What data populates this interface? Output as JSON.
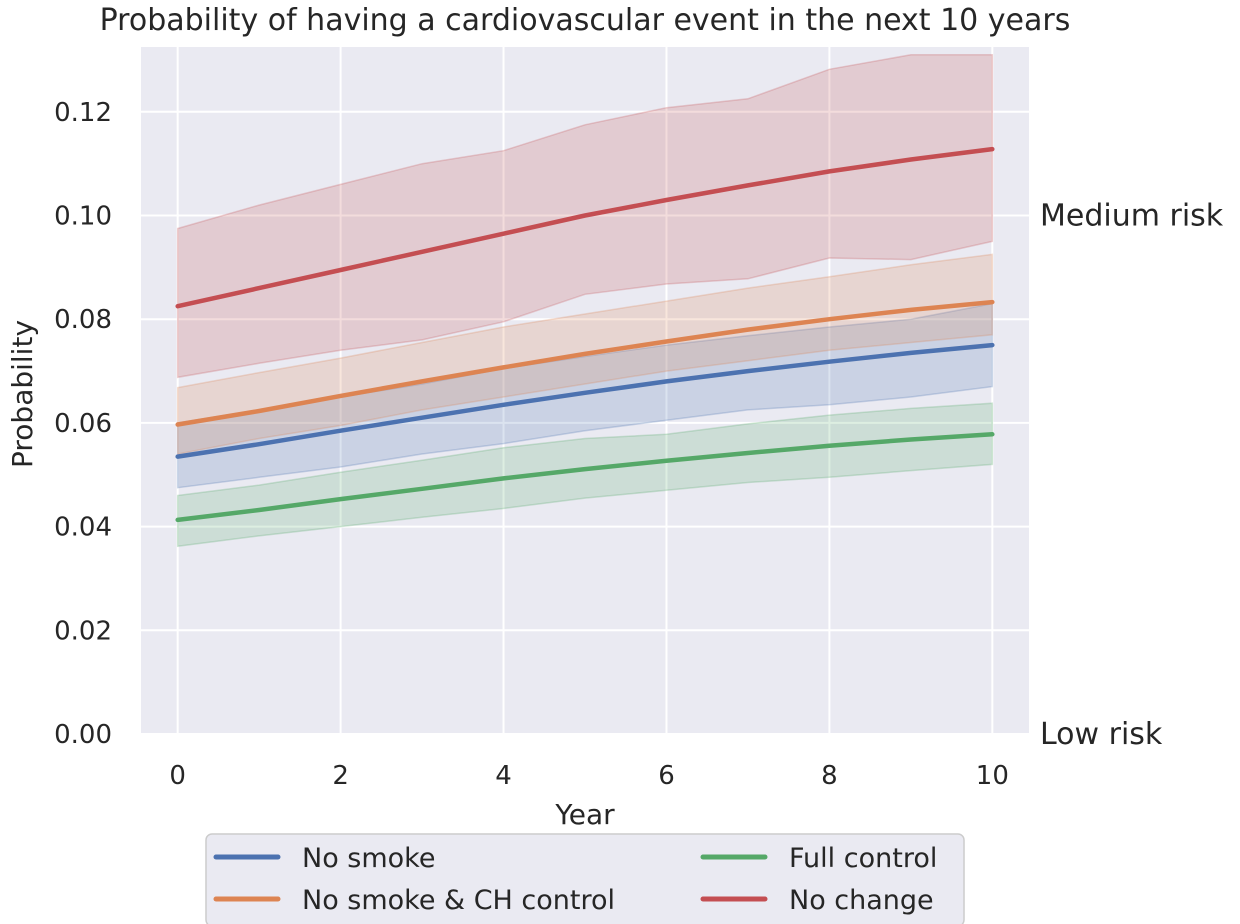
{
  "chart_data": {
    "type": "line",
    "title": "Probability of having a cardiovascular event in the next 10 years",
    "xlabel": "Year",
    "ylabel": "Probability",
    "xlim": [
      -0.45,
      10.45
    ],
    "ylim": [
      0,
      0.1325
    ],
    "xticks": [
      0,
      2,
      4,
      6,
      8,
      10
    ],
    "xtick_labels": [
      "0",
      "2",
      "4",
      "6",
      "8",
      "10"
    ],
    "yticks": [
      0,
      0.02,
      0.04,
      0.06,
      0.08,
      0.1,
      0.12
    ],
    "ytick_labels": [
      "0.00",
      "0.02",
      "0.04",
      "0.06",
      "0.08",
      "0.10",
      "0.12"
    ],
    "grid": true,
    "x": [
      0,
      1,
      2,
      3,
      4,
      5,
      6,
      7,
      8,
      9,
      10
    ],
    "series": [
      {
        "name": "No smoke",
        "color": "#4c72b0",
        "values": [
          0.0535,
          0.0559,
          0.0585,
          0.061,
          0.0635,
          0.0658,
          0.068,
          0.07,
          0.0718,
          0.0735,
          0.075
        ],
        "lower": [
          0.0475,
          0.0495,
          0.0515,
          0.054,
          0.056,
          0.0585,
          0.0605,
          0.0625,
          0.0635,
          0.065,
          0.067
        ],
        "upper": [
          0.06,
          0.0625,
          0.065,
          0.0675,
          0.0705,
          0.0728,
          0.075,
          0.0768,
          0.0785,
          0.08,
          0.083
        ]
      },
      {
        "name": "No smoke & CH control",
        "color": "#dd8452",
        "values": [
          0.0597,
          0.0623,
          0.0652,
          0.068,
          0.0707,
          0.0733,
          0.0757,
          0.078,
          0.08,
          0.0818,
          0.0833
        ],
        "lower": [
          0.054,
          0.057,
          0.0595,
          0.0625,
          0.065,
          0.0675,
          0.07,
          0.072,
          0.074,
          0.0755,
          0.077
        ],
        "upper": [
          0.0668,
          0.0697,
          0.0725,
          0.0755,
          0.0785,
          0.081,
          0.0835,
          0.086,
          0.0882,
          0.0905,
          0.0925
        ]
      },
      {
        "name": "Full control",
        "color": "#55a868",
        "values": [
          0.0413,
          0.0432,
          0.0453,
          0.0473,
          0.0493,
          0.0511,
          0.0527,
          0.0542,
          0.0556,
          0.0568,
          0.0578
        ],
        "lower": [
          0.0362,
          0.0382,
          0.04,
          0.0418,
          0.0435,
          0.0455,
          0.047,
          0.0485,
          0.0495,
          0.0508,
          0.052
        ],
        "upper": [
          0.046,
          0.048,
          0.0505,
          0.0528,
          0.0552,
          0.057,
          0.0578,
          0.0598,
          0.0615,
          0.0628,
          0.0638
        ]
      },
      {
        "name": "No change",
        "color": "#c44e52",
        "values": [
          0.0825,
          0.086,
          0.0895,
          0.093,
          0.0965,
          0.1,
          0.103,
          0.1058,
          0.1085,
          0.1108,
          0.1128
        ],
        "lower": [
          0.0688,
          0.0715,
          0.074,
          0.076,
          0.0795,
          0.0848,
          0.0868,
          0.0878,
          0.0918,
          0.0915,
          0.095
        ],
        "upper": [
          0.0975,
          0.102,
          0.106,
          0.11,
          0.1125,
          0.1175,
          0.1208,
          0.1225,
          0.1282,
          0.131,
          0.131
        ]
      }
    ],
    "annotations": [
      {
        "text": "Medium risk",
        "y": 0.1
      },
      {
        "text": "Low risk",
        "y": 0
      }
    ],
    "legend": {
      "placement": "bottom-center",
      "columns": 2,
      "order": [
        "No smoke",
        "No smoke & CH control",
        "Full control",
        "No change"
      ]
    },
    "style": {
      "plot_background": "#eaeaf2",
      "grid_color": "#ffffff",
      "text_color": "#262626",
      "band_opacity": 0.2
    }
  }
}
